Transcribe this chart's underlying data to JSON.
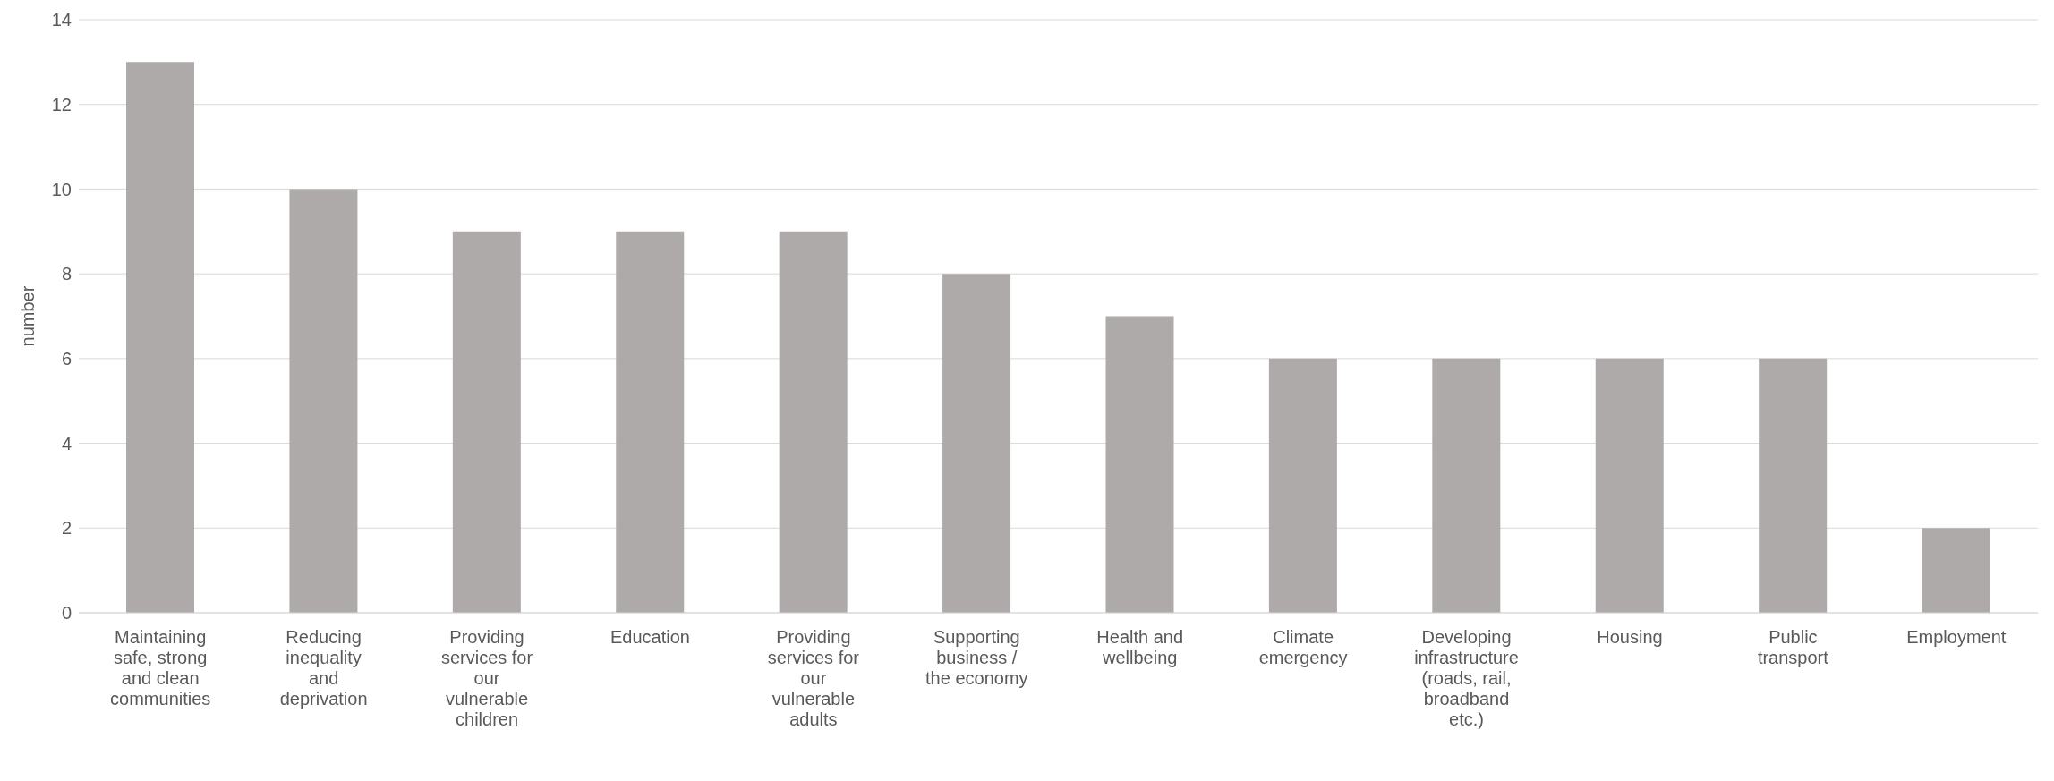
{
  "chart_data": {
    "type": "bar",
    "ylabel": "number",
    "categories": [
      "Maintaining safe, strong and clean communities",
      "Reducing inequality and deprivation",
      "Providing services for our vulnerable children",
      "Education",
      "Providing services for our vulnerable adults",
      "Supporting business / the economy",
      "Health and wellbeing",
      "Climate emergency",
      "Developing infrastructure (roads, rail, broadband etc.)",
      "Housing",
      "Public transport",
      "Employment"
    ],
    "values": [
      13,
      10,
      9,
      9,
      9,
      8,
      7,
      6,
      6,
      6,
      6,
      2
    ],
    "color": "#aeaaaa",
    "ylim": [
      0,
      14
    ],
    "yticks": [
      0,
      2,
      4,
      6,
      8,
      10,
      12,
      14
    ],
    "grid": "y",
    "legend": false
  }
}
